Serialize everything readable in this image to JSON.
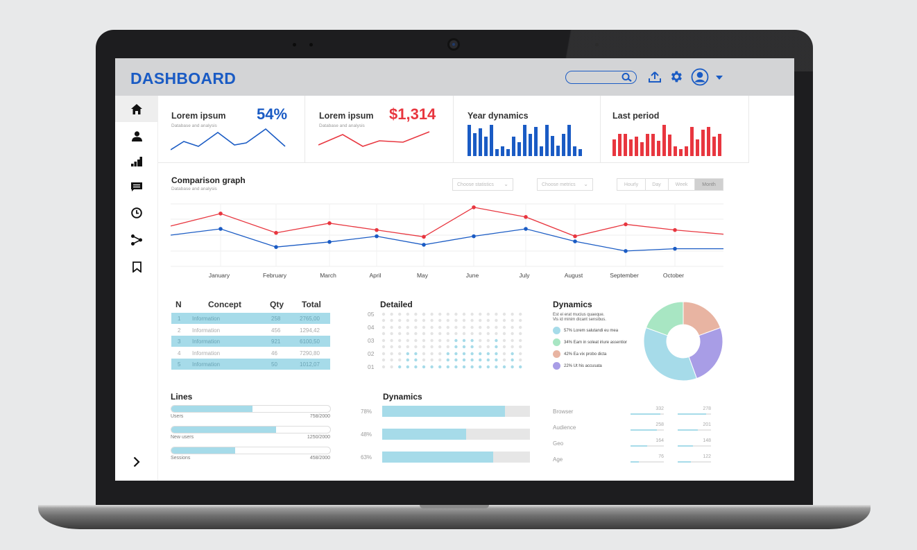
{
  "header": {
    "title": "DASHBOARD"
  },
  "colors": {
    "blue": "#1a5bc4",
    "red": "#e8363f",
    "teal": "#a6dbe9"
  },
  "sidebar": {
    "icons": [
      "home-icon",
      "user-icon",
      "bar-chart-icon",
      "message-icon",
      "clock-icon",
      "share-icon",
      "bookmark-icon"
    ]
  },
  "cards": [
    {
      "title": "Lorem ipsum",
      "sub": "Database and analysis",
      "value": "54%"
    },
    {
      "title": "Lorem ipsum",
      "sub": "Database and analysis",
      "value": "$1,314"
    },
    {
      "title": "Year dynamics"
    },
    {
      "title": "Last period"
    }
  ],
  "comparison": {
    "title": "Comparison graph",
    "sub": "Database and analysis",
    "dropdown_stats": "Choose statistics",
    "dropdown_metrics": "Choose metrics",
    "periods": [
      "Hourly",
      "Day",
      "Week",
      "Month"
    ],
    "active_period": "Month"
  },
  "chart_data": {
    "type": "line",
    "categories": [
      "January",
      "February",
      "March",
      "April",
      "May",
      "June",
      "July",
      "August",
      "September",
      "October"
    ],
    "series": [
      {
        "color": "#e8363f",
        "values": [
          93,
          59,
          76,
          64,
          52,
          104,
          87,
          53,
          74,
          64
        ]
      },
      {
        "color": "#1a5bc4",
        "values": [
          66,
          34,
          43,
          53,
          38,
          53,
          66,
          44,
          27,
          31
        ]
      }
    ],
    "ylim": [
      0,
      110
    ],
    "grid": true
  },
  "table": {
    "headers": [
      "N",
      "Concept",
      "Qty",
      "Total"
    ],
    "rows": [
      [
        "1",
        "Information",
        "258",
        "2765,00"
      ],
      [
        "2",
        "Information",
        "456",
        "1294,42"
      ],
      [
        "3",
        "Information",
        "921",
        "6100,50"
      ],
      [
        "4",
        "Information",
        "46",
        "7290,80"
      ],
      [
        "5",
        "Information",
        "50",
        "1012,07"
      ]
    ]
  },
  "detailed": {
    "title": "Detailed",
    "levels": [
      "05",
      "04",
      "03",
      "02",
      "01"
    ]
  },
  "dynamics_pie": {
    "title": "Dynamics",
    "desc1": "Est ei erat mucius quaeque.",
    "desc2": "Vis id minim dicant sensibus.",
    "items": [
      {
        "label": "57% Lorem salutandi eu mea",
        "color": "#a6dbe9"
      },
      {
        "label": "34% Eam in soleat iriure assentior",
        "color": "#a8e6c3"
      },
      {
        "label": "42% Ea vix probo dicta",
        "color": "#e8b4a2"
      },
      {
        "label": "22% Ut his accusata",
        "color": "#a89de6"
      }
    ]
  },
  "lines": {
    "title": "Lines",
    "items": [
      {
        "label": "Users",
        "value": "758/2000",
        "fill": 0.51
      },
      {
        "label": "New users",
        "value": "1250/2000",
        "fill": 0.66
      },
      {
        "label": "Sessions",
        "value": "458/2000",
        "fill": 0.4
      }
    ]
  },
  "dynamics_bars": {
    "title": "Dynamics",
    "items": [
      {
        "pct": "78%",
        "fill": 0.83
      },
      {
        "pct": "48%",
        "fill": 0.57
      },
      {
        "pct": "63%",
        "fill": 0.75
      }
    ]
  },
  "stats": [
    {
      "label": "Browser",
      "a": "332",
      "b": "278"
    },
    {
      "label": "Audience",
      "a": "258",
      "b": "201"
    },
    {
      "label": "Geo",
      "a": "164",
      "b": "148"
    },
    {
      "label": "Age",
      "a": "76",
      "b": "122"
    }
  ]
}
